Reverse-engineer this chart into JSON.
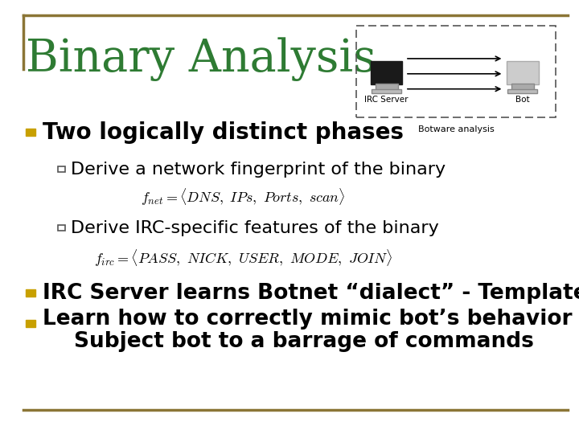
{
  "title": "Binary Analysis",
  "title_color": "#2E7B33",
  "title_fontsize": 40,
  "background_color": "#FFFFFF",
  "border_color": "#8B7536",
  "bullet_color": "#C8A000",
  "bullet1_text": "Two logically distinct phases",
  "bullet1_fontsize": 20,
  "sub1_text": "Derive a network fingerprint of the binary",
  "sub2_text": "Derive IRC-specific features of the binary",
  "sub_fontsize": 16,
  "formula1": "$f_{net} = \\langle DNS,\\ IPs,\\ Ports,\\ scan \\rangle$",
  "formula2": "$f_{irc} = \\langle PASS,\\ NICK,\\ USER,\\ MODE,\\ JOIN \\rangle$",
  "formula_fontsize": 13,
  "bullet2_text": "IRC Server learns Botnet “dialect” - Template",
  "bullet3_line1": "Learn how to correctly mimic bot’s behavior -",
  "bullet3_line2": "Subject bot to a barrage of commands",
  "bullet23_fontsize": 19,
  "irc_label": "IRC Server",
  "bot_label": "Bot",
  "botware_label": "Botware analysis"
}
